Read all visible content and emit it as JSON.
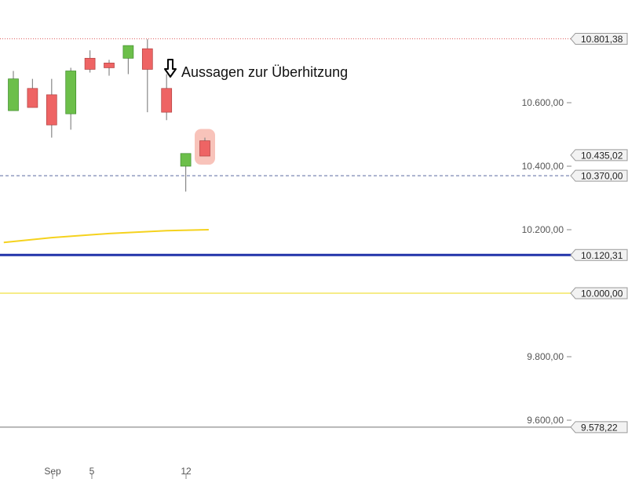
{
  "chart_data": {
    "type": "candlestick",
    "x_ticks": [
      "Sep",
      "5",
      "12"
    ],
    "y_ticks": [
      "10.600,00",
      "10.400,00",
      "10.200,00",
      "9.800,00",
      "9.600,00"
    ],
    "ylim": [
      9550,
      10870
    ],
    "candles": [
      {
        "open": 10575,
        "high": 10700,
        "low": 10575,
        "close": 10675
      },
      {
        "open": 10645,
        "high": 10675,
        "low": 10585,
        "close": 10585
      },
      {
        "open": 10625,
        "high": 10675,
        "low": 10490,
        "close": 10530
      },
      {
        "open": 10565,
        "high": 10710,
        "low": 10515,
        "close": 10700
      },
      {
        "open": 10740,
        "high": 10765,
        "low": 10695,
        "close": 10705
      },
      {
        "open": 10725,
        "high": 10735,
        "low": 10685,
        "close": 10710
      },
      {
        "open": 10740,
        "high": 10780,
        "low": 10690,
        "close": 10780
      },
      {
        "open": 10770,
        "high": 10800,
        "low": 10570,
        "close": 10705
      },
      {
        "open": 10645,
        "high": 10690,
        "low": 10545,
        "close": 10570
      },
      {
        "open": 10400,
        "high": 10440,
        "low": 10320,
        "close": 10440
      },
      {
        "open": 10480,
        "high": 10490,
        "low": 10432,
        "close": 10432
      }
    ],
    "moving_average": [
      {
        "i": -0.5,
        "v": 10160
      },
      {
        "i": 2,
        "v": 10175
      },
      {
        "i": 5,
        "v": 10188
      },
      {
        "i": 8,
        "v": 10197
      },
      {
        "i": 10.2,
        "v": 10200
      }
    ],
    "levels": [
      {
        "label": "10.801,38",
        "value": 10801.38,
        "style": "dotted",
        "color": "#e06060"
      },
      {
        "label": "10.435,02",
        "value": 10435.02,
        "style": "none",
        "color": "#888888"
      },
      {
        "label": "10.370,00",
        "value": 10370,
        "style": "dashed",
        "color": "#5a6aa0"
      },
      {
        "label": "10.120,31",
        "value": 10120.31,
        "style": "solid-thick",
        "color": "#2233aa"
      },
      {
        "label": "10.000,00",
        "value": 10000,
        "style": "solid-thin",
        "color": "#f0e040"
      },
      {
        "label": "9.578,22",
        "value": 9578.22,
        "style": "solid-thin",
        "color": "#999999"
      }
    ],
    "annotation": {
      "text": "Aussagen zur Überhitzung",
      "candle_index": 8
    },
    "highlight_candle_index": 10,
    "colors": {
      "up": "#6cbf4a",
      "down": "#ee6464",
      "ma": "#f5d21e",
      "grid_text": "#555555"
    }
  }
}
